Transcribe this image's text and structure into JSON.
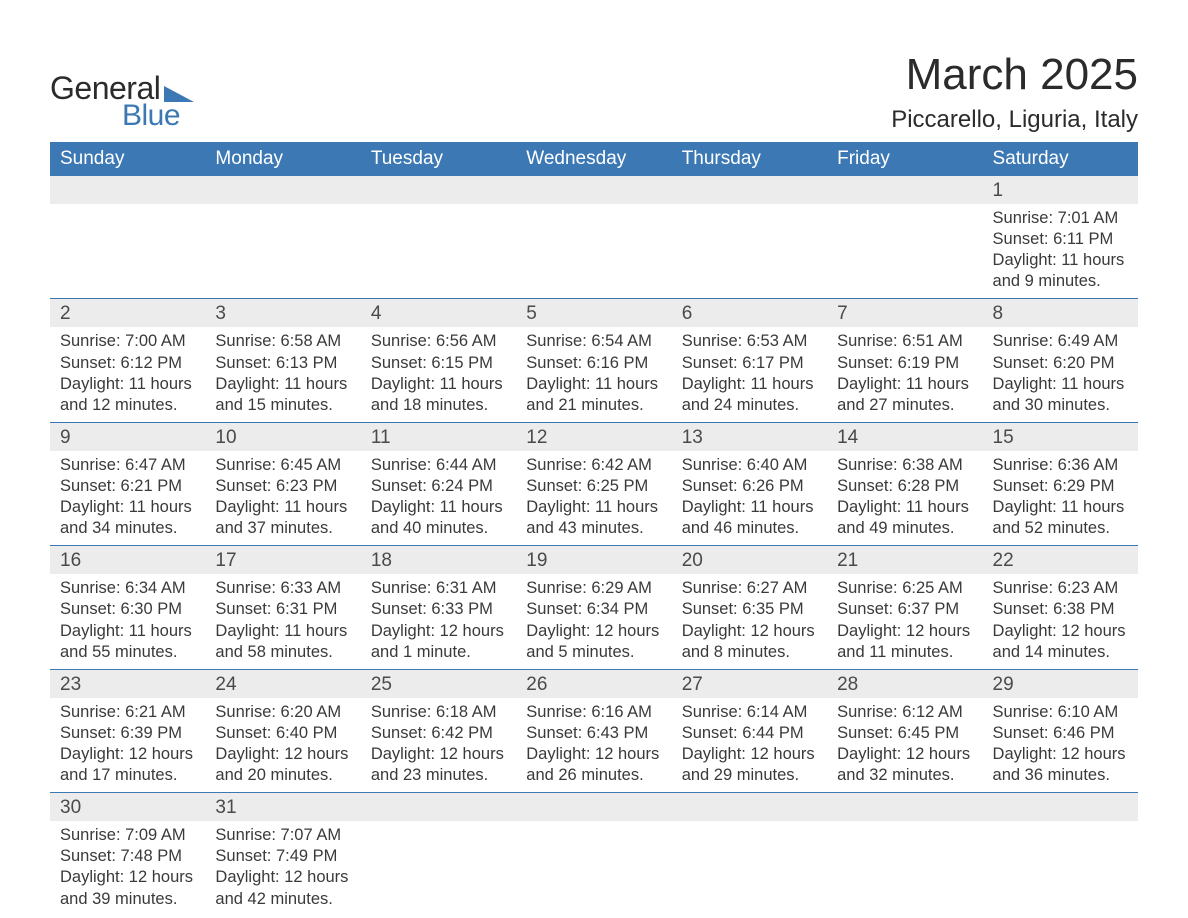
{
  "logo": {
    "word1": "General",
    "word2": "Blue",
    "triangle_color": "#3c78b4",
    "text_color_dark": "#2b2b2b",
    "text_color_blue": "#3c78b4"
  },
  "header": {
    "month_title": "March 2025",
    "location": "Piccarello, Liguria, Italy"
  },
  "colors": {
    "header_bg": "#3c78b4",
    "header_text": "#ffffff",
    "daynum_bg": "#ececec",
    "row_divider": "#3c78b4",
    "body_text": "#3a3a3a",
    "page_bg": "#ffffff"
  },
  "typography": {
    "month_title_fontsize": 44,
    "location_fontsize": 24,
    "weekday_fontsize": 19,
    "daynum_fontsize": 19,
    "detail_fontsize": 16.5
  },
  "weekdays": [
    "Sunday",
    "Monday",
    "Tuesday",
    "Wednesday",
    "Thursday",
    "Friday",
    "Saturday"
  ],
  "weeks": [
    [
      null,
      null,
      null,
      null,
      null,
      null,
      {
        "day": "1",
        "sunrise": "Sunrise: 7:01 AM",
        "sunset": "Sunset: 6:11 PM",
        "daylight1": "Daylight: 11 hours",
        "daylight2": "and 9 minutes."
      }
    ],
    [
      {
        "day": "2",
        "sunrise": "Sunrise: 7:00 AM",
        "sunset": "Sunset: 6:12 PM",
        "daylight1": "Daylight: 11 hours",
        "daylight2": "and 12 minutes."
      },
      {
        "day": "3",
        "sunrise": "Sunrise: 6:58 AM",
        "sunset": "Sunset: 6:13 PM",
        "daylight1": "Daylight: 11 hours",
        "daylight2": "and 15 minutes."
      },
      {
        "day": "4",
        "sunrise": "Sunrise: 6:56 AM",
        "sunset": "Sunset: 6:15 PM",
        "daylight1": "Daylight: 11 hours",
        "daylight2": "and 18 minutes."
      },
      {
        "day": "5",
        "sunrise": "Sunrise: 6:54 AM",
        "sunset": "Sunset: 6:16 PM",
        "daylight1": "Daylight: 11 hours",
        "daylight2": "and 21 minutes."
      },
      {
        "day": "6",
        "sunrise": "Sunrise: 6:53 AM",
        "sunset": "Sunset: 6:17 PM",
        "daylight1": "Daylight: 11 hours",
        "daylight2": "and 24 minutes."
      },
      {
        "day": "7",
        "sunrise": "Sunrise: 6:51 AM",
        "sunset": "Sunset: 6:19 PM",
        "daylight1": "Daylight: 11 hours",
        "daylight2": "and 27 minutes."
      },
      {
        "day": "8",
        "sunrise": "Sunrise: 6:49 AM",
        "sunset": "Sunset: 6:20 PM",
        "daylight1": "Daylight: 11 hours",
        "daylight2": "and 30 minutes."
      }
    ],
    [
      {
        "day": "9",
        "sunrise": "Sunrise: 6:47 AM",
        "sunset": "Sunset: 6:21 PM",
        "daylight1": "Daylight: 11 hours",
        "daylight2": "and 34 minutes."
      },
      {
        "day": "10",
        "sunrise": "Sunrise: 6:45 AM",
        "sunset": "Sunset: 6:23 PM",
        "daylight1": "Daylight: 11 hours",
        "daylight2": "and 37 minutes."
      },
      {
        "day": "11",
        "sunrise": "Sunrise: 6:44 AM",
        "sunset": "Sunset: 6:24 PM",
        "daylight1": "Daylight: 11 hours",
        "daylight2": "and 40 minutes."
      },
      {
        "day": "12",
        "sunrise": "Sunrise: 6:42 AM",
        "sunset": "Sunset: 6:25 PM",
        "daylight1": "Daylight: 11 hours",
        "daylight2": "and 43 minutes."
      },
      {
        "day": "13",
        "sunrise": "Sunrise: 6:40 AM",
        "sunset": "Sunset: 6:26 PM",
        "daylight1": "Daylight: 11 hours",
        "daylight2": "and 46 minutes."
      },
      {
        "day": "14",
        "sunrise": "Sunrise: 6:38 AM",
        "sunset": "Sunset: 6:28 PM",
        "daylight1": "Daylight: 11 hours",
        "daylight2": "and 49 minutes."
      },
      {
        "day": "15",
        "sunrise": "Sunrise: 6:36 AM",
        "sunset": "Sunset: 6:29 PM",
        "daylight1": "Daylight: 11 hours",
        "daylight2": "and 52 minutes."
      }
    ],
    [
      {
        "day": "16",
        "sunrise": "Sunrise: 6:34 AM",
        "sunset": "Sunset: 6:30 PM",
        "daylight1": "Daylight: 11 hours",
        "daylight2": "and 55 minutes."
      },
      {
        "day": "17",
        "sunrise": "Sunrise: 6:33 AM",
        "sunset": "Sunset: 6:31 PM",
        "daylight1": "Daylight: 11 hours",
        "daylight2": "and 58 minutes."
      },
      {
        "day": "18",
        "sunrise": "Sunrise: 6:31 AM",
        "sunset": "Sunset: 6:33 PM",
        "daylight1": "Daylight: 12 hours",
        "daylight2": "and 1 minute."
      },
      {
        "day": "19",
        "sunrise": "Sunrise: 6:29 AM",
        "sunset": "Sunset: 6:34 PM",
        "daylight1": "Daylight: 12 hours",
        "daylight2": "and 5 minutes."
      },
      {
        "day": "20",
        "sunrise": "Sunrise: 6:27 AM",
        "sunset": "Sunset: 6:35 PM",
        "daylight1": "Daylight: 12 hours",
        "daylight2": "and 8 minutes."
      },
      {
        "day": "21",
        "sunrise": "Sunrise: 6:25 AM",
        "sunset": "Sunset: 6:37 PM",
        "daylight1": "Daylight: 12 hours",
        "daylight2": "and 11 minutes."
      },
      {
        "day": "22",
        "sunrise": "Sunrise: 6:23 AM",
        "sunset": "Sunset: 6:38 PM",
        "daylight1": "Daylight: 12 hours",
        "daylight2": "and 14 minutes."
      }
    ],
    [
      {
        "day": "23",
        "sunrise": "Sunrise: 6:21 AM",
        "sunset": "Sunset: 6:39 PM",
        "daylight1": "Daylight: 12 hours",
        "daylight2": "and 17 minutes."
      },
      {
        "day": "24",
        "sunrise": "Sunrise: 6:20 AM",
        "sunset": "Sunset: 6:40 PM",
        "daylight1": "Daylight: 12 hours",
        "daylight2": "and 20 minutes."
      },
      {
        "day": "25",
        "sunrise": "Sunrise: 6:18 AM",
        "sunset": "Sunset: 6:42 PM",
        "daylight1": "Daylight: 12 hours",
        "daylight2": "and 23 minutes."
      },
      {
        "day": "26",
        "sunrise": "Sunrise: 6:16 AM",
        "sunset": "Sunset: 6:43 PM",
        "daylight1": "Daylight: 12 hours",
        "daylight2": "and 26 minutes."
      },
      {
        "day": "27",
        "sunrise": "Sunrise: 6:14 AM",
        "sunset": "Sunset: 6:44 PM",
        "daylight1": "Daylight: 12 hours",
        "daylight2": "and 29 minutes."
      },
      {
        "day": "28",
        "sunrise": "Sunrise: 6:12 AM",
        "sunset": "Sunset: 6:45 PM",
        "daylight1": "Daylight: 12 hours",
        "daylight2": "and 32 minutes."
      },
      {
        "day": "29",
        "sunrise": "Sunrise: 6:10 AM",
        "sunset": "Sunset: 6:46 PM",
        "daylight1": "Daylight: 12 hours",
        "daylight2": "and 36 minutes."
      }
    ],
    [
      {
        "day": "30",
        "sunrise": "Sunrise: 7:09 AM",
        "sunset": "Sunset: 7:48 PM",
        "daylight1": "Daylight: 12 hours",
        "daylight2": "and 39 minutes."
      },
      {
        "day": "31",
        "sunrise": "Sunrise: 7:07 AM",
        "sunset": "Sunset: 7:49 PM",
        "daylight1": "Daylight: 12 hours",
        "daylight2": "and 42 minutes."
      },
      null,
      null,
      null,
      null,
      null
    ]
  ]
}
